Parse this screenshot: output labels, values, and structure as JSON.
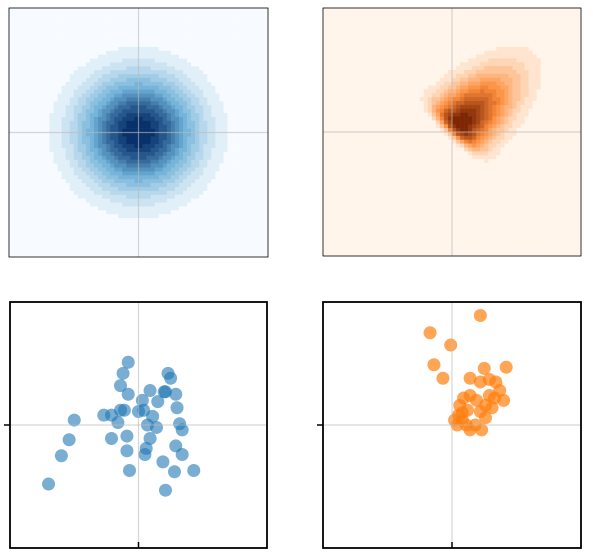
{
  "chart_data": [
    {
      "type": "contour",
      "colormap": [
        "#f7fbff",
        "#6baed6",
        "#08306b"
      ],
      "mean": [
        0,
        0
      ],
      "sd": 0.3,
      "rho": 0,
      "skew": 0,
      "levels": 14,
      "xlim": [
        -1,
        1
      ],
      "ylim": [
        -1,
        1
      ],
      "xticks": [
        0
      ],
      "yticks": [
        0
      ],
      "grid": true,
      "tick_marks": false
    },
    {
      "type": "contour",
      "colormap": [
        "#fff5eb",
        "#fd8d3c",
        "#7f2704"
      ],
      "mean": [
        0,
        0
      ],
      "sd": 0.3,
      "rho": 0.7,
      "skew": 6,
      "levels": 14,
      "xlim": [
        -1,
        1
      ],
      "ylim": [
        -1,
        1
      ],
      "xticks": [
        0
      ],
      "yticks": [
        0
      ],
      "grid": true,
      "tick_marks": false
    },
    {
      "type": "scatter",
      "color": "#1f77b4",
      "opacity": 0.6,
      "x": [
        -0.7,
        -0.6,
        -0.54,
        -0.5,
        -0.27,
        -0.21,
        -0.21,
        -0.16,
        -0.14,
        -0.11,
        -0.09,
        -0.14,
        -0.12,
        -0.08,
        -0.08,
        -0.09,
        -0.07,
        0.0,
        0.03,
        0.04,
        0.05,
        0.06,
        0.07,
        0.09,
        0.09,
        0.11,
        0.15,
        0.2,
        0.23,
        0.21,
        0.25,
        0.29,
        0.3,
        0.32,
        0.34,
        0.29,
        0.34,
        0.19,
        0.28,
        0.21,
        0.43,
        0.14
      ],
      "y": [
        -0.48,
        -0.25,
        -0.12,
        0.04,
        0.08,
        -0.11,
        0.08,
        0.02,
        0.12,
        0.12,
        -0.09,
        0.32,
        0.42,
        0.51,
        0.25,
        -0.21,
        -0.37,
        0.11,
        0.2,
        0.12,
        -0.24,
        -0.19,
        0.0,
        -0.11,
        0.28,
        0.07,
        0.19,
        0.27,
        0.42,
        0.27,
        0.38,
        0.25,
        0.14,
        0.01,
        -0.04,
        -0.17,
        -0.24,
        -0.3,
        -0.38,
        -0.53,
        -0.37,
        -0.02
      ],
      "xlim": [
        -1,
        1
      ],
      "ylim": [
        -1,
        1
      ],
      "xticks": [
        0
      ],
      "yticks": [
        0
      ],
      "grid": true,
      "tick_marks": true
    },
    {
      "type": "scatter",
      "color": "#ff7f0e",
      "opacity": 0.7,
      "x": [
        -0.17,
        0.22,
        -0.01,
        -0.14,
        -0.07,
        0.25,
        0.42,
        0.14,
        0.22,
        0.29,
        0.34,
        0.37,
        0.33,
        0.4,
        0.31,
        0.26,
        0.19,
        0.14,
        0.09,
        0.06,
        0.05,
        0.02,
        0.08,
        0.11,
        0.14,
        0.18,
        0.22,
        0.26,
        0.12,
        0.29,
        0.08,
        0.04,
        0.23
      ],
      "y": [
        0.75,
        0.89,
        0.65,
        0.49,
        0.38,
        0.46,
        0.47,
        0.38,
        0.35,
        0.37,
        0.35,
        0.28,
        0.22,
        0.2,
        0.14,
        0.16,
        0.2,
        0.24,
        0.22,
        0.16,
        0.08,
        0.04,
        0.04,
        0.0,
        -0.04,
        0.0,
        0.11,
        0.06,
        0.12,
        0.24,
        0.1,
        0.0,
        -0.04
      ],
      "xlim": [
        -1,
        1
      ],
      "ylim": [
        -1,
        1
      ],
      "xticks": [
        0
      ],
      "yticks": [
        0
      ],
      "grid": true,
      "tick_marks": true
    }
  ]
}
